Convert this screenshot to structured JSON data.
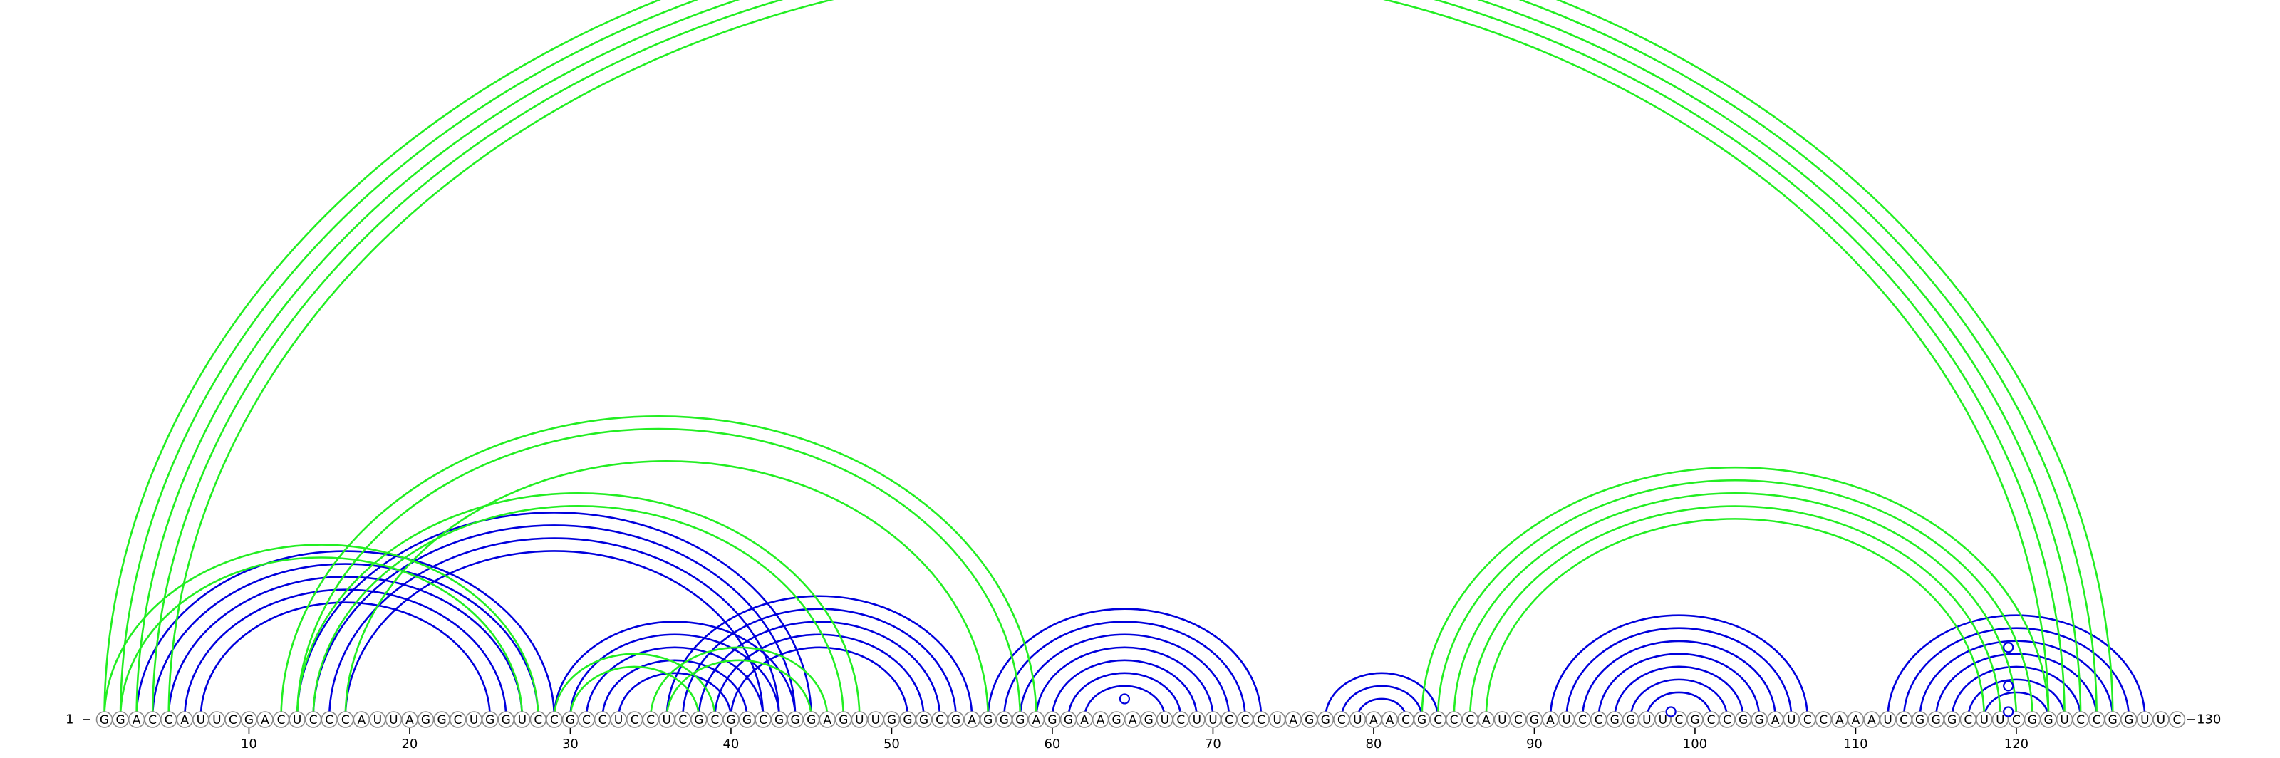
{
  "diagram": {
    "sequence": "GGACCAUUCGACUCCCAUUAGGCUGGUCCGCCUCCUCGCGGCGGGAGUUGGGCGAGGGAGGAAGAGUCUUCCCUAGGCUAACGCCCAUCGAUCCGGUUCGCCGGAUCCAAAUCGGGCUUCGGUCCGGUUC",
    "start_label": "1",
    "end_label": "130",
    "ticks": [
      10,
      20,
      30,
      40,
      50,
      60,
      70,
      80,
      90,
      100,
      110,
      120
    ],
    "colors": {
      "blue": "#0000dd",
      "green": "#22ee22",
      "marker_stroke": "#0000dd",
      "circle_stroke": "#8a8a8a"
    },
    "blue_groups": [
      {
        "i": 3,
        "j": 29,
        "n": 5
      },
      {
        "i": 13,
        "j": 45,
        "n": 4
      },
      {
        "i": 29,
        "j": 44,
        "n": 5
      },
      {
        "i": 36,
        "j": 55,
        "n": 5
      },
      {
        "i": 56,
        "j": 73,
        "n": 7
      },
      {
        "i": 77,
        "j": 84,
        "n": 3
      },
      {
        "i": 91,
        "j": 107,
        "n": 7
      },
      {
        "i": 112,
        "j": 128,
        "n": 7
      }
    ],
    "green_groups": [
      {
        "i": 1,
        "j": 126,
        "n": 5
      },
      {
        "i": 1,
        "j": 28,
        "n": 2
      },
      {
        "i": 12,
        "j": 59,
        "n": 2
      },
      {
        "i": 13,
        "j": 48,
        "n": 2
      },
      {
        "i": 16,
        "j": 56,
        "n": 1
      },
      {
        "i": 29,
        "j": 39,
        "n": 2
      },
      {
        "i": 35,
        "j": 46,
        "n": 2
      },
      {
        "i": 83,
        "j": 122,
        "n": 5
      }
    ],
    "markers": [
      {
        "i": 63,
        "j": 66
      },
      {
        "i": 98,
        "j": 99
      },
      {
        "i": 119,
        "j": 120
      },
      {
        "i": 117,
        "j": 122
      },
      {
        "i": 114,
        "j": 125
      }
    ]
  }
}
